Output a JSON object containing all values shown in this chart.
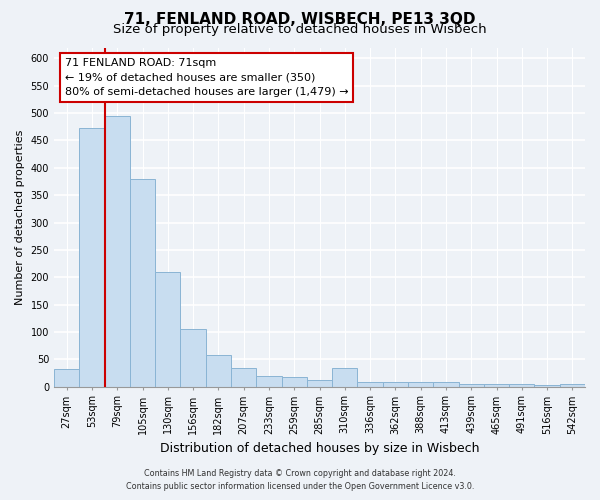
{
  "title": "71, FENLAND ROAD, WISBECH, PE13 3QD",
  "subtitle": "Size of property relative to detached houses in Wisbech",
  "xlabel": "Distribution of detached houses by size in Wisbech",
  "ylabel": "Number of detached properties",
  "bar_labels": [
    "27sqm",
    "53sqm",
    "79sqm",
    "105sqm",
    "130sqm",
    "156sqm",
    "182sqm",
    "207sqm",
    "233sqm",
    "259sqm",
    "285sqm",
    "310sqm",
    "336sqm",
    "362sqm",
    "388sqm",
    "413sqm",
    "439sqm",
    "465sqm",
    "491sqm",
    "516sqm",
    "542sqm"
  ],
  "bar_values": [
    32,
    473,
    495,
    380,
    210,
    105,
    57,
    35,
    20,
    18,
    12,
    35,
    8,
    8,
    8,
    8,
    5,
    5,
    5,
    3,
    5
  ],
  "bar_color": "#c8ddf0",
  "bar_edge_color": "#8ab4d4",
  "vline_x_idx": 2,
  "vline_color": "#cc0000",
  "annotation_title": "71 FENLAND ROAD: 71sqm",
  "annotation_line1": "← 19% of detached houses are smaller (350)",
  "annotation_line2": "80% of semi-detached houses are larger (1,479) →",
  "annotation_box_color": "#ffffff",
  "annotation_box_edge": "#cc0000",
  "ylim": [
    0,
    620
  ],
  "yticks": [
    0,
    50,
    100,
    150,
    200,
    250,
    300,
    350,
    400,
    450,
    500,
    550,
    600
  ],
  "footer1": "Contains HM Land Registry data © Crown copyright and database right 2024.",
  "footer2": "Contains public sector information licensed under the Open Government Licence v3.0.",
  "title_fontsize": 11,
  "subtitle_fontsize": 9.5,
  "label_fontsize": 8,
  "tick_fontsize": 7,
  "background_color": "#eef2f7"
}
